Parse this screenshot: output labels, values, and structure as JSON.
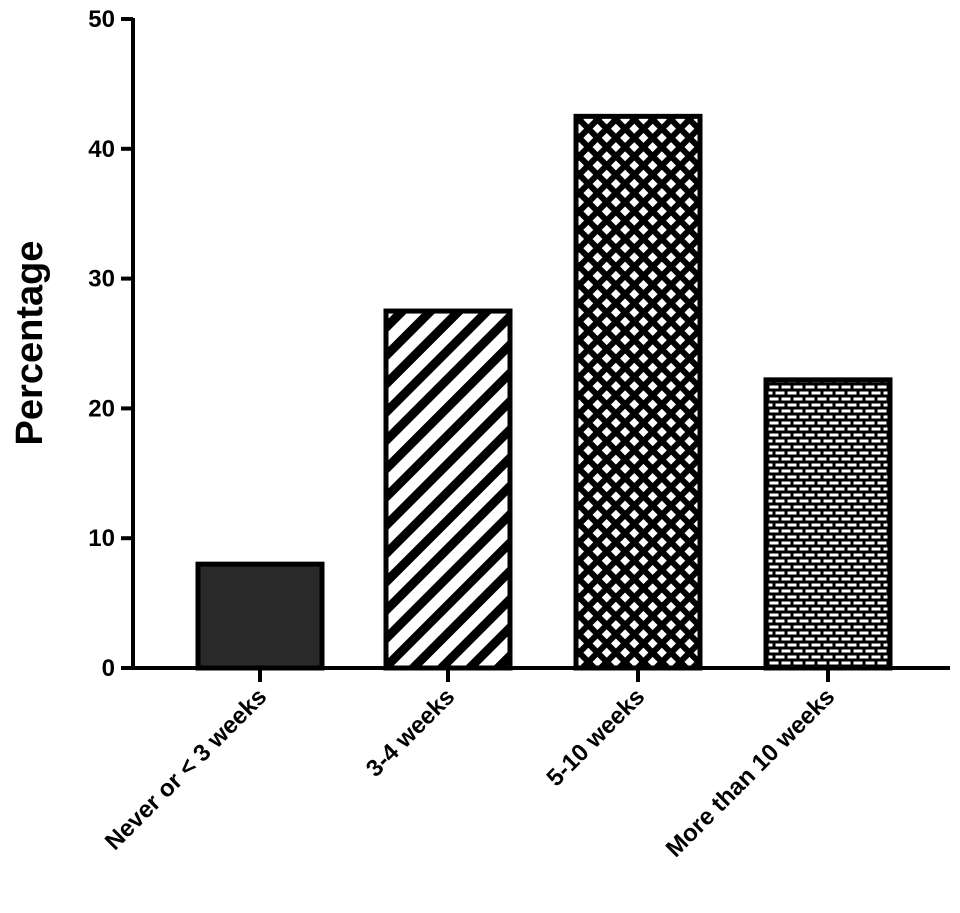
{
  "chart_data": {
    "type": "bar",
    "title": "",
    "xlabel": "",
    "ylabel": "Percentage",
    "ylim": [
      0,
      50
    ],
    "yticks": [
      0,
      10,
      20,
      30,
      40,
      50
    ],
    "ytick_labels": [
      "0",
      "10",
      "20",
      "30",
      "40",
      "50"
    ],
    "grid": false,
    "legend": "none",
    "categories": [
      "Never or < 3 weeks",
      "3-4 weeks",
      "5-10 weeks",
      "More than 10 weeks"
    ],
    "values": [
      8,
      27.5,
      42.5,
      22.2
    ],
    "patterns": [
      "solid",
      "diagonal-stripes",
      "crosshatch",
      "brick"
    ],
    "colors": {
      "solid_fill": "#2a2a2a",
      "stroke": "#000000",
      "background": "#ffffff"
    }
  }
}
